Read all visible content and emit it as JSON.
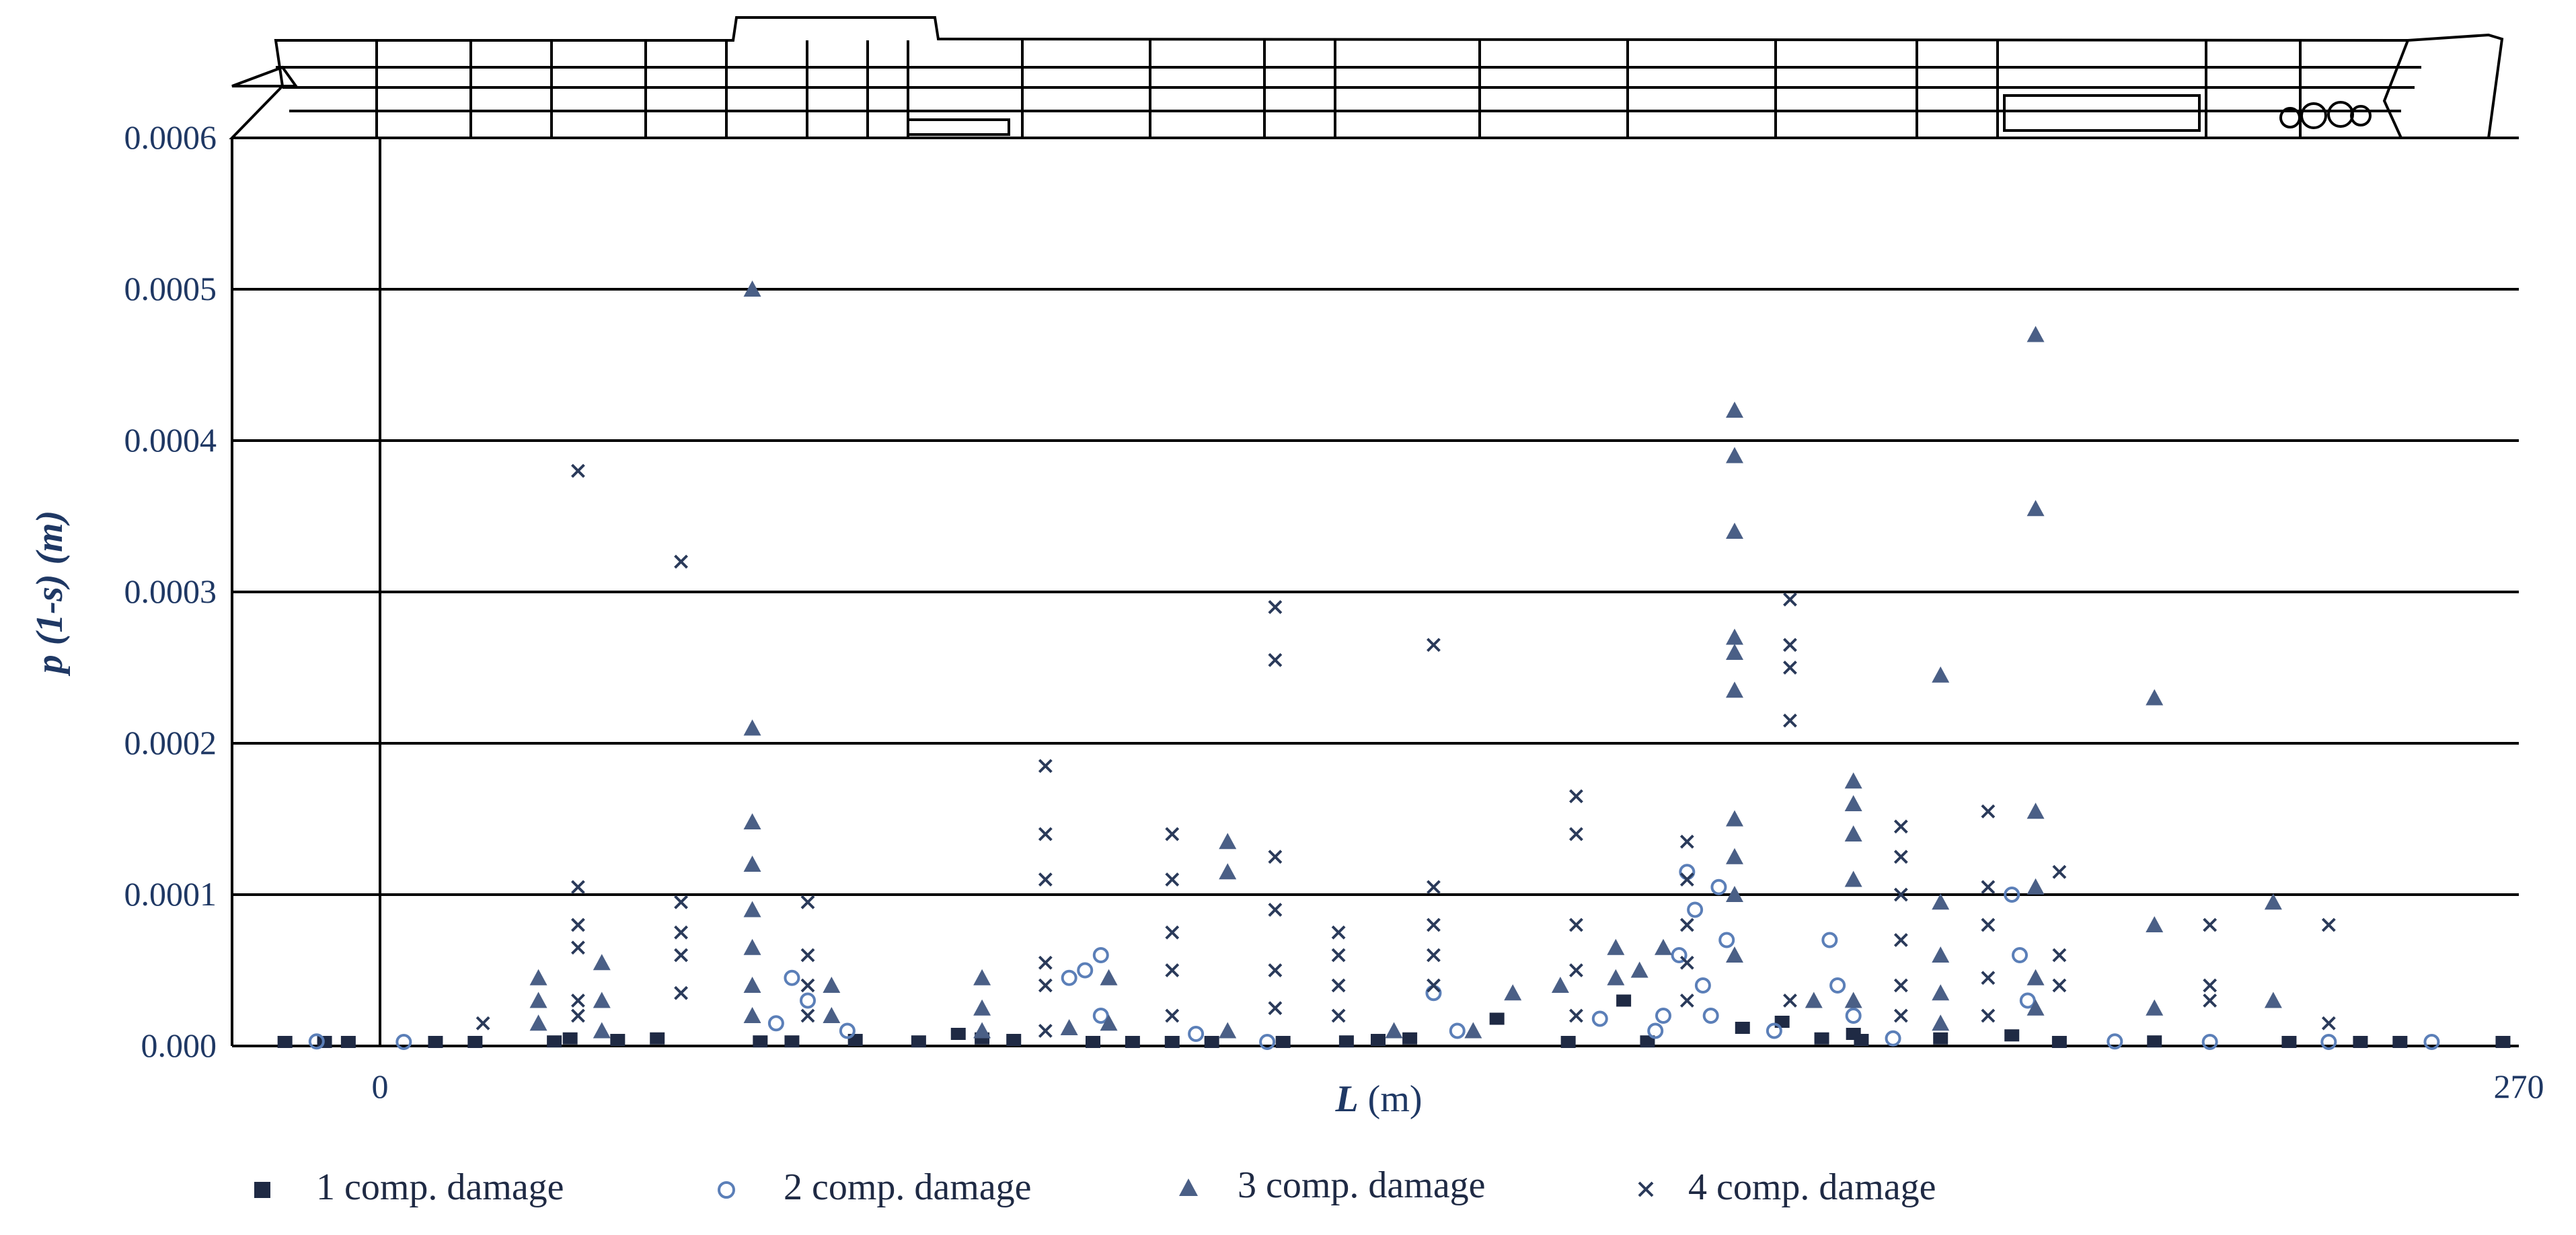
{
  "colors": {
    "dark_navy": "#1f2a44",
    "light_blue": "#5b7fb8",
    "steel_blue": "#4a5f86",
    "cross": "#2a3a5a",
    "text": "#1f3864"
  },
  "chart_data": {
    "type": "scatter",
    "title": "",
    "xlabel_main": "L",
    "xlabel_unit": " (m)",
    "ylabel": "p (1-s) (m)",
    "x_tick_labels": [
      "0",
      "270"
    ],
    "y_tick_labels": [
      "0.000",
      "0.0001",
      "0.0002",
      "0.0003",
      "0.0004",
      "0.0005",
      "0.0006"
    ],
    "xlim": [
      -18,
      270
    ],
    "ylim": [
      0,
      0.0006
    ],
    "series": [
      {
        "name": "1 comp. damage",
        "marker": "square",
        "points": [
          [
            -12,
            2e-06
          ],
          [
            -7,
            2e-06
          ],
          [
            -4,
            2e-06
          ],
          [
            7,
            2e-06
          ],
          [
            12,
            2e-06
          ],
          [
            22,
            3e-06
          ],
          [
            24,
            5e-06
          ],
          [
            30,
            4e-06
          ],
          [
            35,
            5e-06
          ],
          [
            48,
            3e-06
          ],
          [
            52,
            3e-06
          ],
          [
            60,
            4e-06
          ],
          [
            68,
            3e-06
          ],
          [
            73,
            8e-06
          ],
          [
            76,
            5e-06
          ],
          [
            80,
            4e-06
          ],
          [
            90,
            2e-06
          ],
          [
            95,
            2e-06
          ],
          [
            100,
            2e-06
          ],
          [
            105,
            2e-06
          ],
          [
            114,
            2e-06
          ],
          [
            122,
            3e-06
          ],
          [
            126,
            4e-06
          ],
          [
            130,
            5e-06
          ],
          [
            141,
            1.8e-05
          ],
          [
            150,
            0.0
          ],
          [
            157,
            3e-05
          ],
          [
            160,
            3e-06
          ],
          [
            172,
            1.2e-05
          ],
          [
            177,
            1.6e-05
          ],
          [
            182,
            5e-06
          ],
          [
            186,
            8e-06
          ],
          [
            187,
            4e-06
          ],
          [
            197,
            5e-06
          ],
          [
            206,
            7e-06
          ],
          [
            212,
            2e-06
          ],
          [
            224,
            3e-06
          ],
          [
            241,
            2e-06
          ],
          [
            250,
            2e-06
          ],
          [
            255,
            2e-06
          ],
          [
            268,
            2e-06
          ]
        ]
      },
      {
        "name": "2 comp. damage",
        "marker": "circle",
        "points": [
          [
            -8,
            3e-06
          ],
          [
            3,
            2e-06
          ],
          [
            50,
            1.5e-05
          ],
          [
            52,
            4.5e-05
          ],
          [
            54,
            3e-05
          ],
          [
            59,
            1e-05
          ],
          [
            87,
            4.5e-05
          ],
          [
            89,
            5e-05
          ],
          [
            91,
            6e-05
          ],
          [
            91,
            2e-05
          ],
          [
            103,
            8e-06
          ],
          [
            112,
            2e-06
          ],
          [
            133,
            3.5e-05
          ],
          [
            136,
            1e-05
          ],
          [
            154,
            1.8e-05
          ],
          [
            161,
            1e-05
          ],
          [
            162,
            2e-05
          ],
          [
            164,
            6e-05
          ],
          [
            165,
            0.000115
          ],
          [
            166,
            9e-05
          ],
          [
            167,
            4e-05
          ],
          [
            168,
            2e-05
          ],
          [
            169,
            0.000105
          ],
          [
            170,
            7e-05
          ],
          [
            176,
            1e-05
          ],
          [
            183,
            7e-05
          ],
          [
            184,
            4e-05
          ],
          [
            186,
            2e-05
          ],
          [
            191,
            5e-06
          ],
          [
            206,
            0.0001
          ],
          [
            207,
            6e-05
          ],
          [
            208,
            3e-05
          ],
          [
            219,
            3e-06
          ],
          [
            231,
            2e-06
          ],
          [
            246,
            2e-06
          ],
          [
            259,
            2e-06
          ]
        ]
      },
      {
        "name": "3 comp. damage",
        "marker": "triangle",
        "points": [
          [
            20,
            4.5e-05
          ],
          [
            20,
            3e-05
          ],
          [
            20,
            1.5e-05
          ],
          [
            28,
            5.5e-05
          ],
          [
            28,
            3e-05
          ],
          [
            28,
            1e-05
          ],
          [
            47,
            0.0005
          ],
          [
            47,
            0.00021
          ],
          [
            47,
            0.000148
          ],
          [
            47,
            0.00012
          ],
          [
            47,
            9e-05
          ],
          [
            47,
            6.5e-05
          ],
          [
            47,
            4e-05
          ],
          [
            47,
            2e-05
          ],
          [
            57,
            4e-05
          ],
          [
            57,
            2e-05
          ],
          [
            76,
            4.5e-05
          ],
          [
            76,
            2.5e-05
          ],
          [
            76,
            1e-05
          ],
          [
            87,
            1.2e-05
          ],
          [
            92,
            4.5e-05
          ],
          [
            92,
            1.5e-05
          ],
          [
            107,
            0.000135
          ],
          [
            107,
            0.000115
          ],
          [
            107,
            1e-05
          ],
          [
            128,
            1e-05
          ],
          [
            138,
            1e-05
          ],
          [
            143,
            3.5e-05
          ],
          [
            149,
            4e-05
          ],
          [
            156,
            6.5e-05
          ],
          [
            156,
            4.5e-05
          ],
          [
            159,
            5e-05
          ],
          [
            162,
            6.5e-05
          ],
          [
            171,
            0.00042
          ],
          [
            171,
            0.00039
          ],
          [
            171,
            0.00034
          ],
          [
            171,
            0.00027
          ],
          [
            171,
            0.00026
          ],
          [
            171,
            0.000235
          ],
          [
            171,
            0.00015
          ],
          [
            171,
            0.000125
          ],
          [
            171,
            0.0001
          ],
          [
            171,
            6e-05
          ],
          [
            181,
            3e-05
          ],
          [
            186,
            0.000175
          ],
          [
            186,
            0.00016
          ],
          [
            186,
            0.00014
          ],
          [
            186,
            0.00011
          ],
          [
            186,
            3e-05
          ],
          [
            197,
            0.000245
          ],
          [
            197,
            9.5e-05
          ],
          [
            197,
            6e-05
          ],
          [
            197,
            3.5e-05
          ],
          [
            197,
            1.5e-05
          ],
          [
            209,
            0.00047
          ],
          [
            209,
            0.000355
          ],
          [
            209,
            0.000155
          ],
          [
            209,
            0.000105
          ],
          [
            209,
            4.5e-05
          ],
          [
            209,
            2.5e-05
          ],
          [
            224,
            0.00023
          ],
          [
            224,
            8e-05
          ],
          [
            224,
            2.5e-05
          ],
          [
            239,
            9.5e-05
          ],
          [
            239,
            3e-05
          ]
        ]
      },
      {
        "name": "4 comp. damage",
        "marker": "cross",
        "points": [
          [
            13,
            1.5e-05
          ],
          [
            25,
            0.00038
          ],
          [
            25,
            0.000105
          ],
          [
            25,
            8e-05
          ],
          [
            25,
            6.5e-05
          ],
          [
            25,
            3e-05
          ],
          [
            25,
            2e-05
          ],
          [
            38,
            0.00032
          ],
          [
            38,
            9.5e-05
          ],
          [
            38,
            7.5e-05
          ],
          [
            38,
            6e-05
          ],
          [
            38,
            3.5e-05
          ],
          [
            54,
            9.5e-05
          ],
          [
            54,
            6e-05
          ],
          [
            54,
            4e-05
          ],
          [
            54,
            2e-05
          ],
          [
            84,
            0.000185
          ],
          [
            84,
            0.00014
          ],
          [
            84,
            0.00011
          ],
          [
            84,
            5.5e-05
          ],
          [
            84,
            4e-05
          ],
          [
            84,
            1e-05
          ],
          [
            100,
            0.00014
          ],
          [
            100,
            0.00011
          ],
          [
            100,
            7.5e-05
          ],
          [
            100,
            5e-05
          ],
          [
            100,
            2e-05
          ],
          [
            113,
            0.00029
          ],
          [
            113,
            0.000255
          ],
          [
            113,
            0.000125
          ],
          [
            113,
            9e-05
          ],
          [
            113,
            5e-05
          ],
          [
            113,
            2.5e-05
          ],
          [
            121,
            7.5e-05
          ],
          [
            121,
            6e-05
          ],
          [
            121,
            4e-05
          ],
          [
            121,
            2e-05
          ],
          [
            133,
            0.000265
          ],
          [
            133,
            0.000105
          ],
          [
            133,
            8e-05
          ],
          [
            133,
            6e-05
          ],
          [
            133,
            4e-05
          ],
          [
            151,
            0.000165
          ],
          [
            151,
            0.00014
          ],
          [
            151,
            8e-05
          ],
          [
            151,
            5e-05
          ],
          [
            151,
            2e-05
          ],
          [
            165,
            0.000135
          ],
          [
            165,
            0.00011
          ],
          [
            165,
            8e-05
          ],
          [
            165,
            5.5e-05
          ],
          [
            165,
            3e-05
          ],
          [
            178,
            0.000295
          ],
          [
            178,
            0.000265
          ],
          [
            178,
            0.00025
          ],
          [
            178,
            0.000215
          ],
          [
            178,
            3e-05
          ],
          [
            192,
            0.000145
          ],
          [
            192,
            0.000125
          ],
          [
            192,
            0.0001
          ],
          [
            192,
            7e-05
          ],
          [
            192,
            4e-05
          ],
          [
            192,
            2e-05
          ],
          [
            203,
            0.000155
          ],
          [
            203,
            0.000105
          ],
          [
            203,
            8e-05
          ],
          [
            203,
            4.5e-05
          ],
          [
            203,
            2e-05
          ],
          [
            212,
            0.000115
          ],
          [
            212,
            6e-05
          ],
          [
            212,
            4e-05
          ],
          [
            231,
            8e-05
          ],
          [
            231,
            4e-05
          ],
          [
            231,
            3e-05
          ],
          [
            246,
            8e-05
          ],
          [
            246,
            1.5e-05
          ]
        ]
      }
    ],
    "legend": [
      {
        "label": "1 comp. damage",
        "marker": "square"
      },
      {
        "label": "2 comp. damage",
        "marker": "circle"
      },
      {
        "label": "3 comp. damage",
        "marker": "triangle"
      },
      {
        "label": "4 comp. damage",
        "marker": "cross"
      }
    ]
  }
}
